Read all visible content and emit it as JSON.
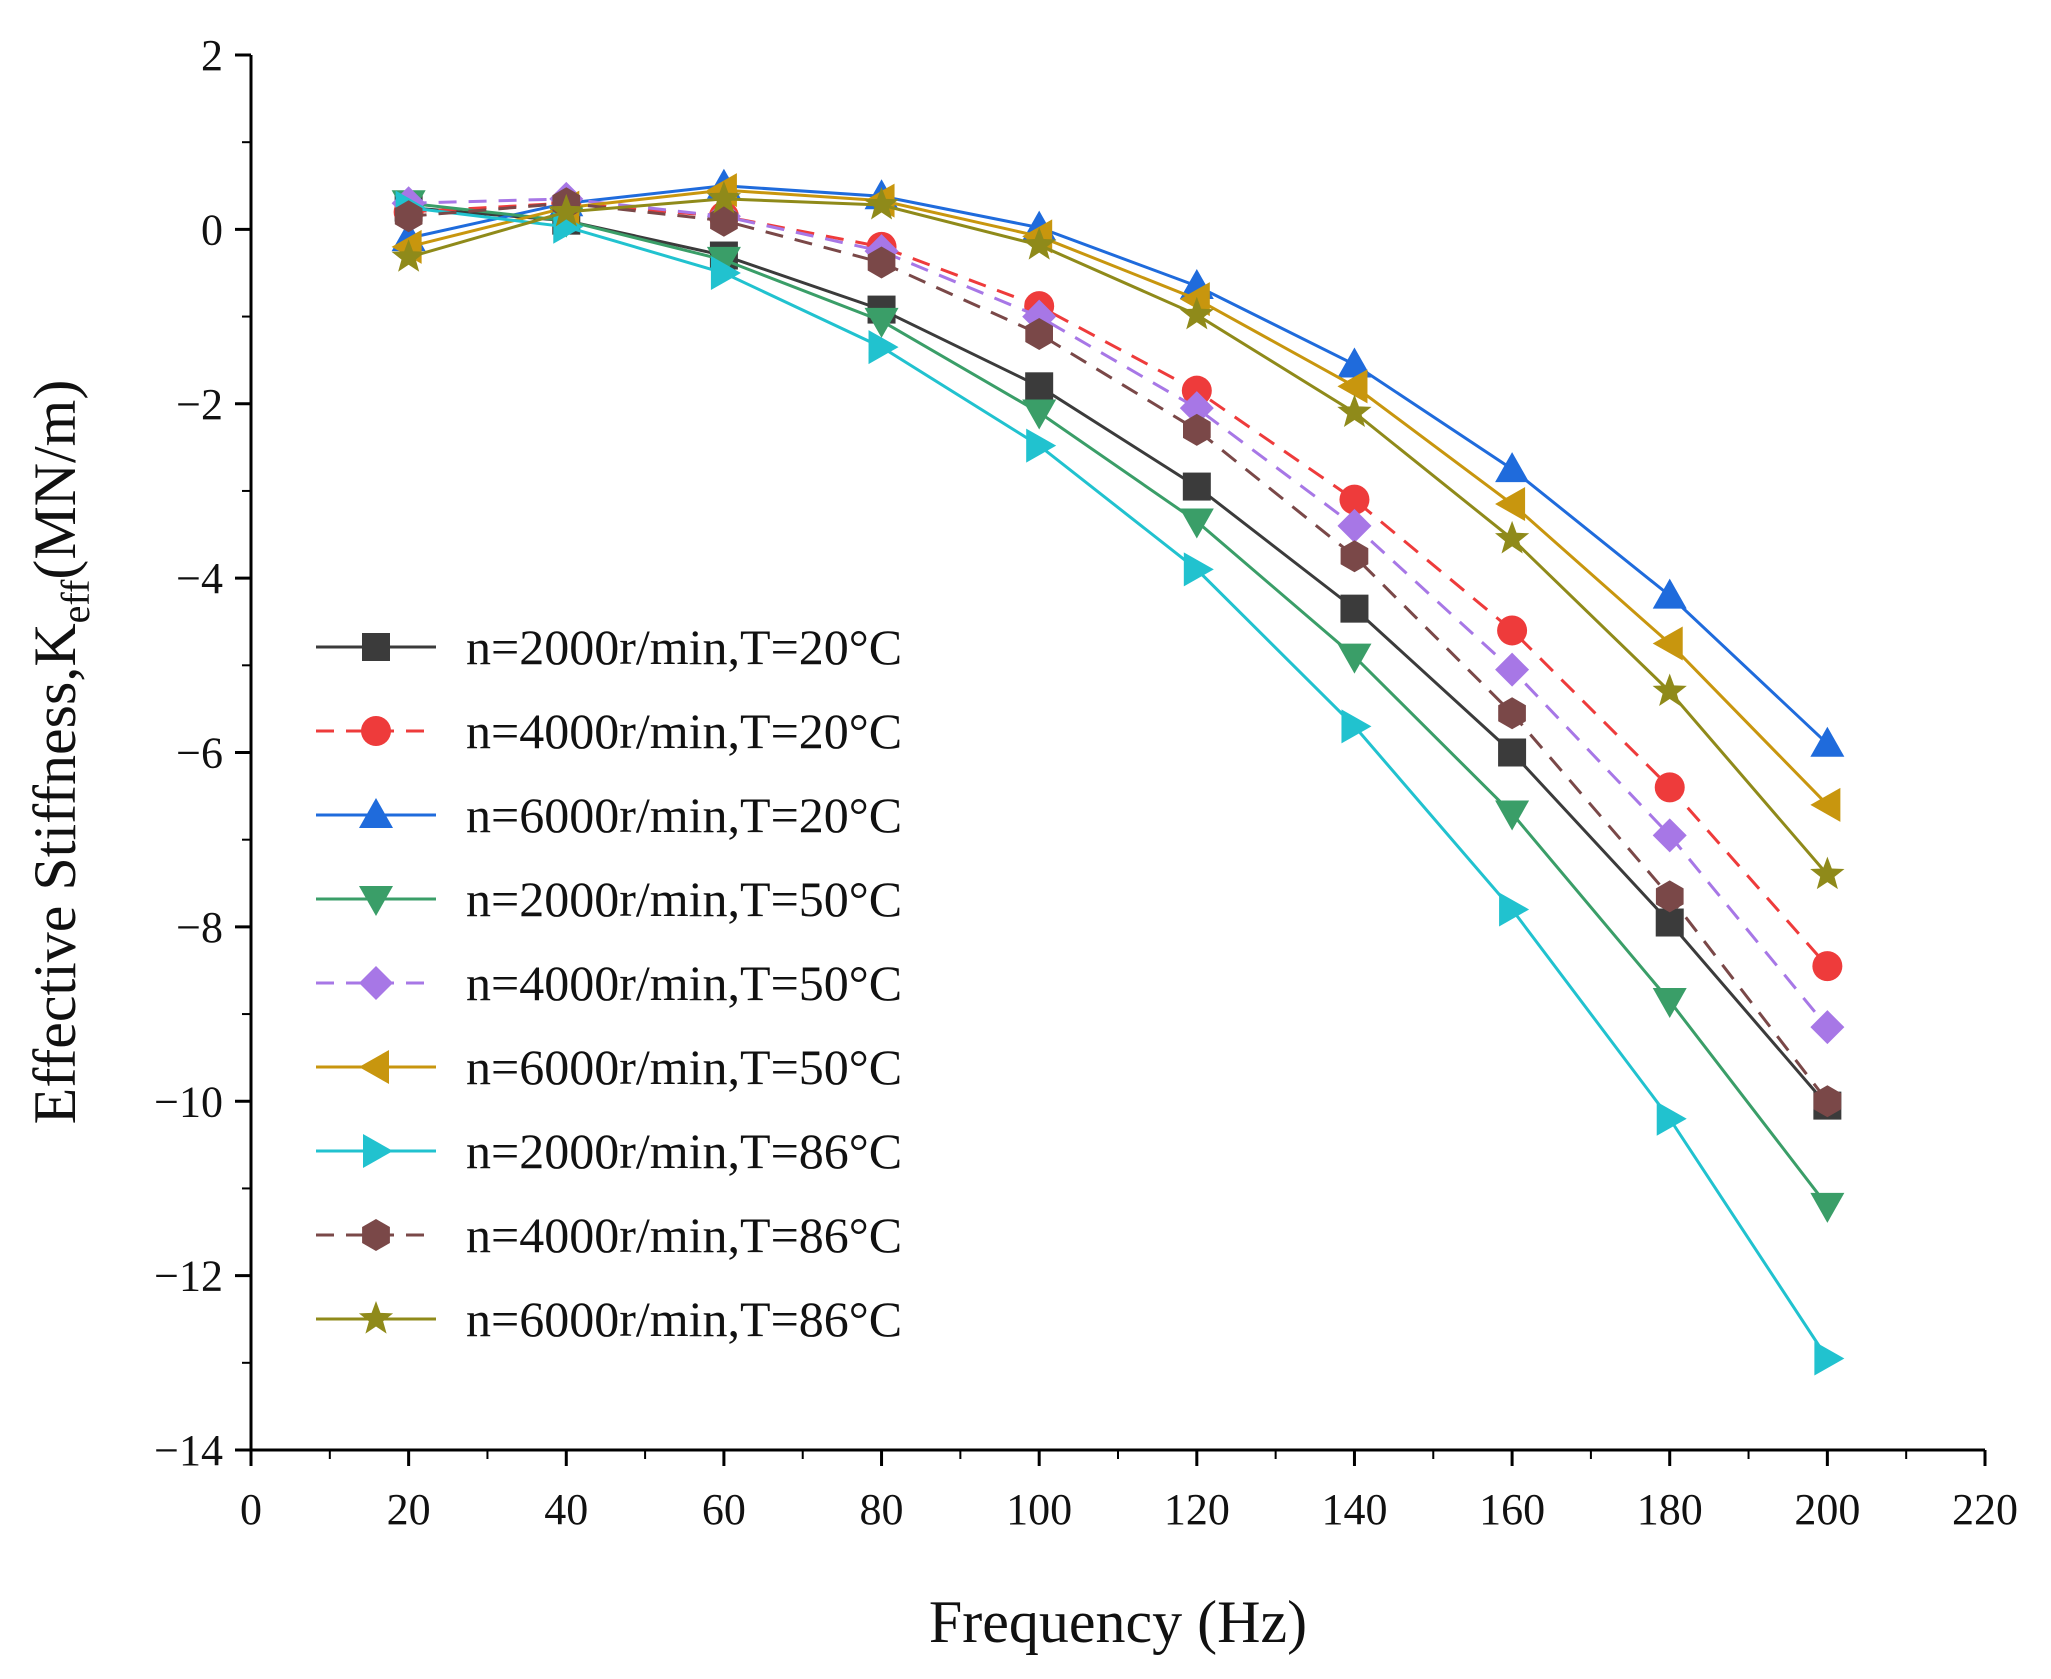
{
  "chart_data": {
    "type": "line",
    "title": "",
    "xlabel": "Frequency (Hz)",
    "ylabel": {
      "main": "Effective Stiffness,K",
      "sub": "eff",
      "unit": "(MN/m)"
    },
    "xlim": [
      0,
      220
    ],
    "ylim": [
      -14,
      2
    ],
    "x_ticks": [
      0,
      20,
      40,
      60,
      80,
      100,
      120,
      140,
      160,
      180,
      200,
      220
    ],
    "y_ticks": [
      2,
      0,
      -2,
      -4,
      -6,
      -8,
      -10,
      -12,
      -14
    ],
    "y_tick_labels": [
      "2",
      "0",
      "−2",
      "−4",
      "−6",
      "−8",
      "−10",
      "−12",
      "−14"
    ],
    "grid": false,
    "legend_position": "left-middle",
    "x": [
      20,
      40,
      60,
      80,
      100,
      120,
      140,
      160,
      180,
      200
    ],
    "series": [
      {
        "name": "n=2000r/min,T=20°C",
        "color": "#3b3b3b",
        "marker": "square",
        "dash": false,
        "values": [
          0.25,
          0.1,
          -0.3,
          -0.92,
          -1.8,
          -2.95,
          -4.35,
          -6.0,
          -7.95,
          -10.05
        ]
      },
      {
        "name": "n=4000r/min,T=20°C",
        "color": "#ee3b3b",
        "marker": "circle",
        "dash": true,
        "values": [
          0.2,
          0.3,
          0.15,
          -0.2,
          -0.88,
          -1.85,
          -3.1,
          -4.6,
          -6.4,
          -8.45
        ]
      },
      {
        "name": "n=6000r/min,T=20°C",
        "color": "#1f6bdc",
        "marker": "triangle-up",
        "dash": false,
        "values": [
          -0.1,
          0.3,
          0.5,
          0.38,
          0.02,
          -0.65,
          -1.55,
          -2.75,
          -4.2,
          -5.9
        ]
      },
      {
        "name": "n=2000r/min,T=50°C",
        "color": "#3a9e68",
        "marker": "triangle-down",
        "dash": false,
        "values": [
          0.3,
          0.1,
          -0.35,
          -1.05,
          -2.1,
          -3.35,
          -4.9,
          -6.7,
          -8.85,
          -11.2
        ]
      },
      {
        "name": "n=4000r/min,T=50°C",
        "color": "#a777e6",
        "marker": "diamond",
        "dash": true,
        "values": [
          0.3,
          0.35,
          0.15,
          -0.25,
          -1.0,
          -2.05,
          -3.4,
          -5.05,
          -6.95,
          -9.15
        ]
      },
      {
        "name": "n=6000r/min,T=50°C",
        "color": "#c8960e",
        "marker": "triangle-left",
        "dash": false,
        "values": [
          -0.2,
          0.25,
          0.45,
          0.33,
          -0.08,
          -0.8,
          -1.8,
          -3.15,
          -4.75,
          -6.6
        ]
      },
      {
        "name": "n=2000r/min,T=86°C",
        "color": "#21c2cf",
        "marker": "triangle-right",
        "dash": false,
        "values": [
          0.25,
          0.03,
          -0.5,
          -1.35,
          -2.48,
          -3.9,
          -5.7,
          -7.8,
          -10.2,
          -12.95
        ]
      },
      {
        "name": "n=4000r/min,T=86°C",
        "color": "#7a4848",
        "marker": "hexagon",
        "dash": true,
        "values": [
          0.15,
          0.3,
          0.1,
          -0.38,
          -1.2,
          -2.3,
          -3.75,
          -5.55,
          -7.65,
          -10.0
        ]
      },
      {
        "name": "n=6000r/min,T=86°C",
        "color": "#8f8a1a",
        "marker": "star",
        "dash": false,
        "values": [
          -0.32,
          0.2,
          0.35,
          0.28,
          -0.18,
          -0.98,
          -2.1,
          -3.55,
          -5.3,
          -7.4
        ]
      }
    ]
  }
}
